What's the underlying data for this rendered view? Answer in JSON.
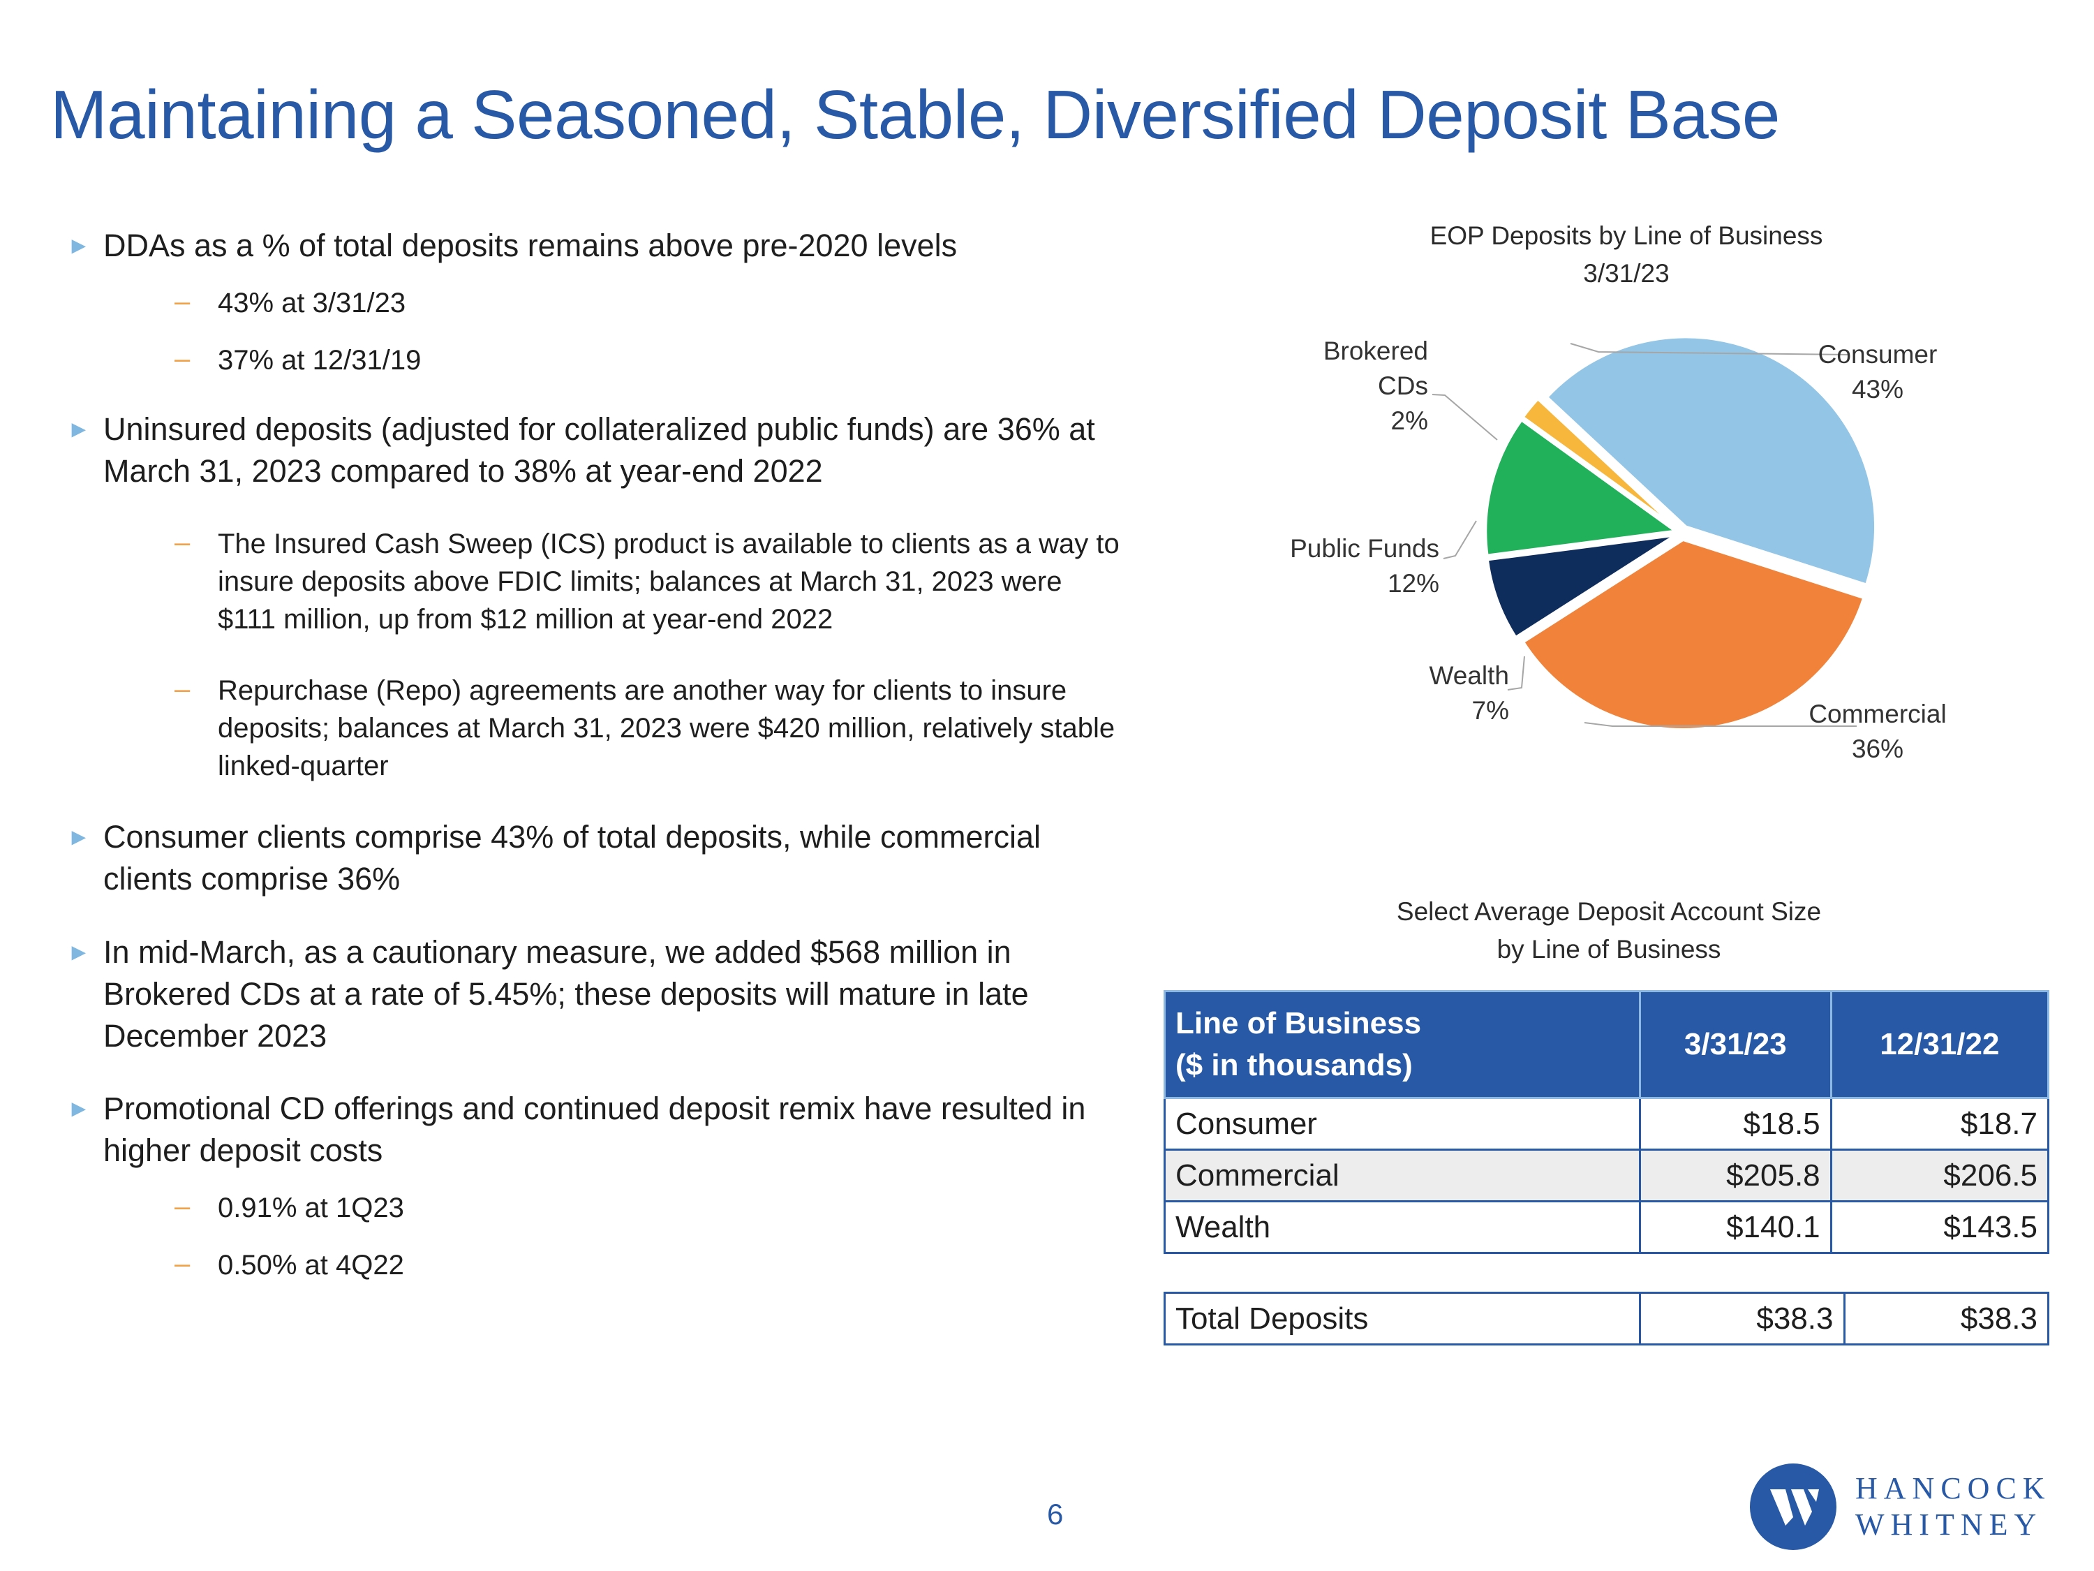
{
  "title": "Maintaining a Seasoned, Stable, Diversified Deposit Base",
  "bullets": {
    "b1": "DDAs as a % of total deposits remains above pre-2020 levels",
    "b1_s1": "43% at 3/31/23",
    "b1_s2": "37% at 12/31/19",
    "b2": "Uninsured deposits (adjusted for collateralized public funds) are 36% at March 31, 2023 compared to 38% at year-end 2022",
    "b2_s1": "The Insured Cash Sweep (ICS) product is available to clients as a way to insure deposits above FDIC limits; balances at March 31, 2023 were $111 million, up from $12 million at year-end 2022",
    "b2_s2": "Repurchase (Repo) agreements are another way for clients to insure deposits; balances at March 31, 2023 were $420 million, relatively stable linked-quarter",
    "b3": "Consumer clients comprise 43% of total deposits, while commercial clients comprise 36%",
    "b4": "In mid-March, as a cautionary measure, we added $568 million in Brokered CDs at a rate of 5.45%; these deposits will mature in late December 2023",
    "b5": "Promotional CD offerings and continued deposit remix have resulted in higher deposit costs",
    "b5_s1": "0.91% at 1Q23",
    "b5_s2": "0.50% at 4Q22",
    "marker_main": "►",
    "marker_sub": "–"
  },
  "chart_data": {
    "type": "pie",
    "title": "EOP Deposits by Line of Business",
    "subtitle": "3/31/23",
    "slices": [
      {
        "name": "Consumer",
        "value": 43,
        "label": "43%",
        "color": "#92c5e6"
      },
      {
        "name": "Commercial",
        "value": 36,
        "label": "36%",
        "color": "#f0823a"
      },
      {
        "name": "Wealth",
        "value": 7,
        "label": "7%",
        "color": "#0f2d5c"
      },
      {
        "name": "Public Funds",
        "value": 12,
        "label": "12%",
        "color": "#21b15a"
      },
      {
        "name": "Brokered CDs",
        "value": 2,
        "label": "2%",
        "color": "#f7b73d"
      }
    ]
  },
  "table": {
    "title_line1": "Select Average Deposit Account Size",
    "title_line2": "by Line of Business",
    "header_line1": "Line of Business",
    "header_line2": "($ in thousands)",
    "col1": "3/31/23",
    "col2": "12/31/22",
    "rows": [
      {
        "name": "Consumer",
        "v1": "$18.5",
        "v2": "$18.7"
      },
      {
        "name": "Commercial",
        "v1": "$205.8",
        "v2": "$206.5"
      },
      {
        "name": "Wealth",
        "v1": "$140.1",
        "v2": "$143.5"
      }
    ],
    "total": {
      "name": "Total Deposits",
      "v1": "$38.3",
      "v2": "$38.3"
    }
  },
  "footer": {
    "page_number": "6",
    "logo_line1": "HANCOCK",
    "logo_line2": "WHITNEY"
  },
  "colors": {
    "brand_blue": "#2759a6",
    "header_border": "#8eb9e3",
    "alt_row": "#ededed",
    "bullet_main": "#7fb7e0",
    "bullet_sub": "#f0a24b"
  }
}
